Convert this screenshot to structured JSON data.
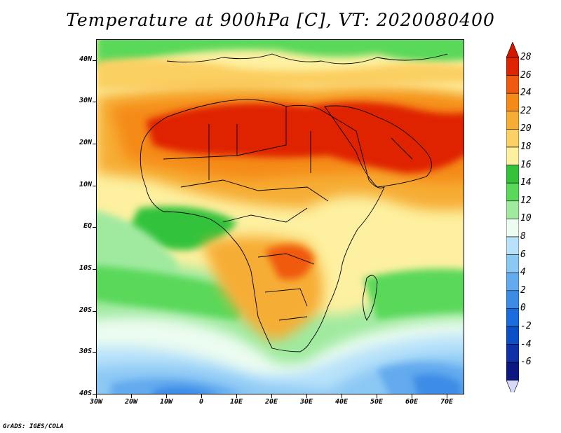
{
  "title": "Temperature at 900hPa [C], VT: 2020080400",
  "credit": "GrADS: IGES/COLA",
  "map": {
    "lon_range": [
      -30,
      75
    ],
    "lat_range": [
      -40,
      45
    ],
    "lat_ticks": [
      {
        "value": 40,
        "label": "40N"
      },
      {
        "value": 30,
        "label": "30N"
      },
      {
        "value": 20,
        "label": "20N"
      },
      {
        "value": 10,
        "label": "10N"
      },
      {
        "value": 0,
        "label": "EQ"
      },
      {
        "value": -10,
        "label": "10S"
      },
      {
        "value": -20,
        "label": "20S"
      },
      {
        "value": -30,
        "label": "30S"
      },
      {
        "value": -40,
        "label": "40S"
      }
    ],
    "lon_ticks": [
      {
        "value": -30,
        "label": "30W"
      },
      {
        "value": -20,
        "label": "20W"
      },
      {
        "value": -10,
        "label": "10W"
      },
      {
        "value": 0,
        "label": "0"
      },
      {
        "value": 10,
        "label": "10E"
      },
      {
        "value": 20,
        "label": "20E"
      },
      {
        "value": 30,
        "label": "30E"
      },
      {
        "value": 40,
        "label": "40E"
      },
      {
        "value": 50,
        "label": "50E"
      },
      {
        "value": 60,
        "label": "60E"
      },
      {
        "value": 70,
        "label": "70E"
      }
    ]
  },
  "colorbar": {
    "unit": "C",
    "levels": [
      "28",
      "26",
      "24",
      "22",
      "20",
      "18",
      "16",
      "14",
      "12",
      "10",
      "8",
      "6",
      "4",
      "2",
      "0",
      "-2",
      "-4",
      "-6"
    ],
    "colors": [
      "#df2200",
      "#f05a10",
      "#f58a18",
      "#f6ad35",
      "#fbd064",
      "#fdf0a0",
      "#33c23a",
      "#5ad85a",
      "#a0eaa0",
      "#ecfcf0",
      "#b8e2fa",
      "#8cc8f4",
      "#64aaee",
      "#3c8ce6",
      "#1a6cde",
      "#0c4ec8",
      "#1030a8",
      "#0a1880"
    ],
    "low_tip_color": "#d8d8f8",
    "high_tip_color": "#d41800"
  }
}
